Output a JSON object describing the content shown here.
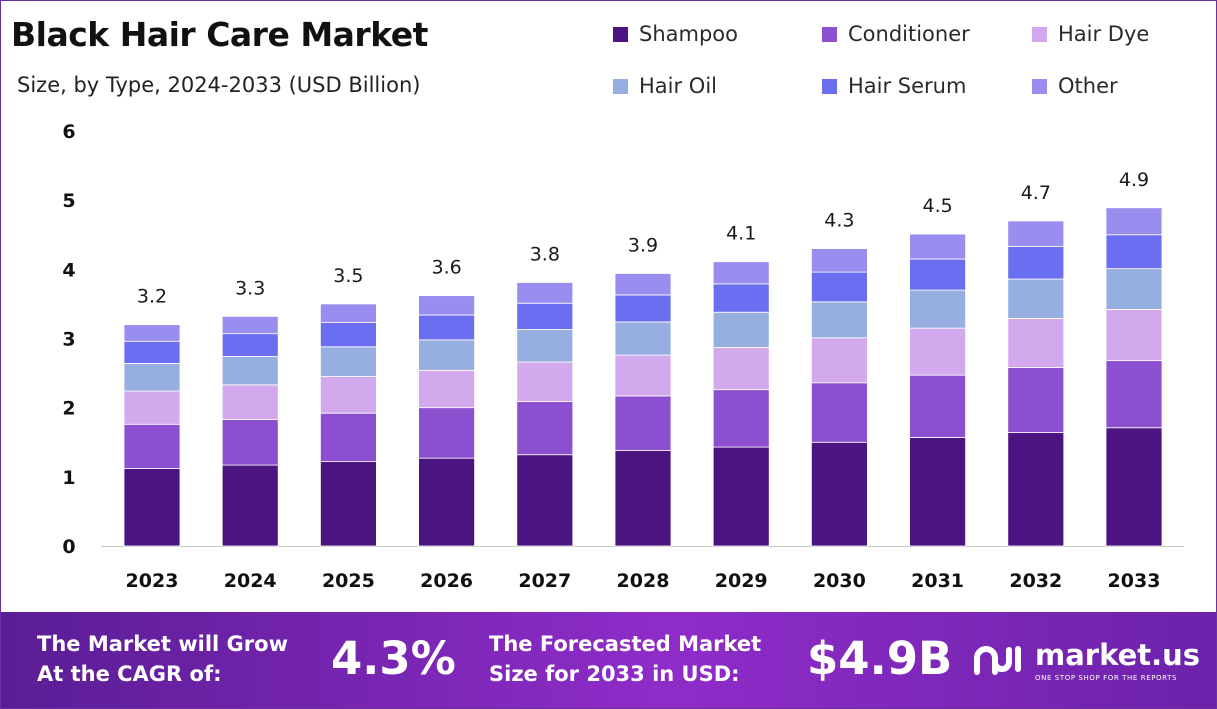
{
  "header": {
    "title": "Black Hair Care Market",
    "subtitle": "Size, by Type, 2024-2033 (USD Billion)"
  },
  "chart_data": {
    "type": "bar",
    "stacked": true,
    "title": "Black Hair Care Market",
    "subtitle": "Size, by Type, 2024-2033 (USD Billion)",
    "categories": [
      "2023",
      "2024",
      "2025",
      "2026",
      "2027",
      "2028",
      "2029",
      "2030",
      "2031",
      "2032",
      "2033"
    ],
    "yticks": [
      "0",
      "1",
      "2",
      "3",
      "4",
      "5",
      "6"
    ],
    "ylim": [
      0,
      6
    ],
    "grid": false,
    "legend_position": "top-right",
    "totals": [
      "3.2",
      "3.3",
      "3.5",
      "3.6",
      "3.8",
      "3.9",
      "4.1",
      "4.3",
      "4.5",
      "4.7",
      "4.9"
    ],
    "series": [
      {
        "name": "Shampoo",
        "color": "#4b1480",
        "values": [
          1.12,
          1.17,
          1.22,
          1.27,
          1.32,
          1.38,
          1.43,
          1.5,
          1.57,
          1.64,
          1.71
        ]
      },
      {
        "name": "Conditioner",
        "color": "#8c4fcf",
        "values": [
          0.64,
          0.66,
          0.7,
          0.73,
          0.77,
          0.79,
          0.83,
          0.86,
          0.9,
          0.94,
          0.97
        ]
      },
      {
        "name": "Hair Dye",
        "color": "#d3a9ee",
        "values": [
          0.48,
          0.5,
          0.53,
          0.54,
          0.57,
          0.59,
          0.61,
          0.65,
          0.68,
          0.71,
          0.74
        ]
      },
      {
        "name": "Hair Oil",
        "color": "#97aee0",
        "values": [
          0.4,
          0.41,
          0.43,
          0.44,
          0.47,
          0.48,
          0.51,
          0.52,
          0.55,
          0.57,
          0.59
        ]
      },
      {
        "name": "Hair Serum",
        "color": "#6c6ef2",
        "values": [
          0.32,
          0.33,
          0.35,
          0.36,
          0.38,
          0.39,
          0.41,
          0.43,
          0.45,
          0.47,
          0.49
        ]
      },
      {
        "name": "Other",
        "color": "#9a8df0",
        "values": [
          0.24,
          0.25,
          0.27,
          0.28,
          0.3,
          0.31,
          0.32,
          0.34,
          0.36,
          0.37,
          0.39
        ]
      }
    ]
  },
  "footer": {
    "cagr_line1": "The Market will Grow",
    "cagr_line2": "At the CAGR of:",
    "cagr_value": "4.3%",
    "forecast_line1": "The Forecasted Market",
    "forecast_line2": "Size for 2033 in USD:",
    "forecast_value": "$4.9B",
    "brand_name": "market.us",
    "brand_tagline": "ONE STOP SHOP FOR THE REPORTS"
  }
}
